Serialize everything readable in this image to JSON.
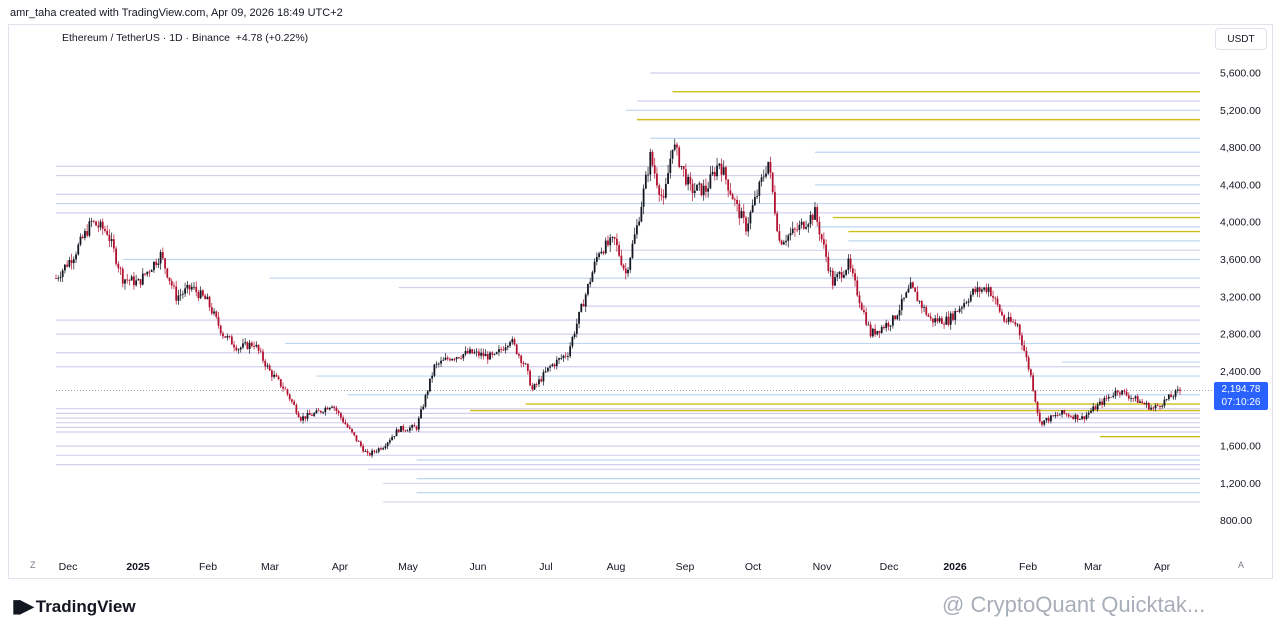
{
  "header": {
    "text": "amr_taha created with TradingView.com, Apr 09, 2026 18:49 UTC+2"
  },
  "symbol": {
    "name": "Ethereum / TetherUS",
    "interval": "1D",
    "exchange": "Binance",
    "change": "+4.78 (+0.22%)"
  },
  "currency": "USDT",
  "last_price": {
    "value": "2,194.78",
    "countdown": "07:10:26"
  },
  "footer": {
    "logo_text": "TradingView",
    "watermark": "@ CryptoQuant Quicktak..."
  },
  "corner_left": "Z",
  "corner_right": "A",
  "colors": {
    "up": "#131722",
    "down": "#b2102f",
    "levels": "#9e97d8",
    "levels_blue": "#6fa8dc",
    "levels_gold": "#c9b800",
    "accent": "#2962ff"
  },
  "chart_data": {
    "type": "candlestick",
    "title": "",
    "ylim": [
      800,
      5600
    ],
    "y_ticks": [
      "5,600.00",
      "5,200.00",
      "4,800.00",
      "4,400.00",
      "4,000.00",
      "3,600.00",
      "3,200.00",
      "2,800.00",
      "2,400.00",
      "1,600.00",
      "1,200.00",
      "800.00"
    ],
    "x_ticks": [
      "Dec",
      "2025",
      "Feb",
      "Mar",
      "Apr",
      "May",
      "Jun",
      "Jul",
      "Aug",
      "Sep",
      "Oct",
      "Nov",
      "Dec",
      "2026",
      "Feb",
      "Mar",
      "Apr"
    ],
    "bold_x_ticks": [
      "2025",
      "2026"
    ],
    "series": [
      {
        "close_path": [
          [
            "2024-11-20",
            3400
          ],
          [
            "2024-11-28",
            3650
          ],
          [
            "2024-12-06",
            4000
          ],
          [
            "2024-12-13",
            3900
          ],
          [
            "2024-12-20",
            3400
          ],
          [
            "2024-12-27",
            3350
          ],
          [
            "2025-01-06",
            3650
          ],
          [
            "2025-01-13",
            3200
          ],
          [
            "2025-01-20",
            3300
          ],
          [
            "2025-01-27",
            3150
          ],
          [
            "2025-02-03",
            2800
          ],
          [
            "2025-02-10",
            2650
          ],
          [
            "2025-02-17",
            2700
          ],
          [
            "2025-02-24",
            2400
          ],
          [
            "2025-03-03",
            2200
          ],
          [
            "2025-03-10",
            1900
          ],
          [
            "2025-03-17",
            1950
          ],
          [
            "2025-03-24",
            2050
          ],
          [
            "2025-03-31",
            1800
          ],
          [
            "2025-04-09",
            1500
          ],
          [
            "2025-04-16",
            1600
          ],
          [
            "2025-04-23",
            1780
          ],
          [
            "2025-05-01",
            1800
          ],
          [
            "2025-05-09",
            2450
          ],
          [
            "2025-05-16",
            2550
          ],
          [
            "2025-05-25",
            2600
          ],
          [
            "2025-06-05",
            2550
          ],
          [
            "2025-06-12",
            2750
          ],
          [
            "2025-06-19",
            2450
          ],
          [
            "2025-06-22",
            2200
          ],
          [
            "2025-06-30",
            2450
          ],
          [
            "2025-07-08",
            2600
          ],
          [
            "2025-07-15",
            3150
          ],
          [
            "2025-07-22",
            3700
          ],
          [
            "2025-07-29",
            3800
          ],
          [
            "2025-08-03",
            3450
          ],
          [
            "2025-08-08",
            3950
          ],
          [
            "2025-08-14",
            4700
          ],
          [
            "2025-08-20",
            4200
          ],
          [
            "2025-08-24",
            4850
          ],
          [
            "2025-09-01",
            4350
          ],
          [
            "2025-09-08",
            4350
          ],
          [
            "2025-09-14",
            4650
          ],
          [
            "2025-09-22",
            4150
          ],
          [
            "2025-09-26",
            3950
          ],
          [
            "2025-10-06",
            4650
          ],
          [
            "2025-10-11",
            3800
          ],
          [
            "2025-10-18",
            3900
          ],
          [
            "2025-10-27",
            4100
          ],
          [
            "2025-11-04",
            3350
          ],
          [
            "2025-11-11",
            3550
          ],
          [
            "2025-11-21",
            2800
          ],
          [
            "2025-12-01",
            2950
          ],
          [
            "2025-12-09",
            3300
          ],
          [
            "2025-12-18",
            2950
          ],
          [
            "2025-12-26",
            2950
          ],
          [
            "2026-01-06",
            3250
          ],
          [
            "2026-01-13",
            3300
          ],
          [
            "2026-01-20",
            2950
          ],
          [
            "2026-01-26",
            2900
          ],
          [
            "2026-02-01",
            2350
          ],
          [
            "2026-02-05",
            1850
          ],
          [
            "2026-02-15",
            1950
          ],
          [
            "2026-02-24",
            1900
          ],
          [
            "2026-03-04",
            2050
          ],
          [
            "2026-03-12",
            2200
          ],
          [
            "2026-03-20",
            2100
          ],
          [
            "2026-03-28",
            2000
          ],
          [
            "2026-04-09",
            2194.78
          ]
        ]
      }
    ],
    "last_price": 2194.78,
    "price_level_lines": [
      {
        "y": 5600,
        "x_start": "2025-08-14"
      },
      {
        "y": 5400,
        "x_start": "2025-08-24",
        "color": "gold"
      },
      {
        "y": 5300,
        "x_start": "2025-08-08"
      },
      {
        "y": 5200,
        "x_start": "2025-08-03",
        "color": "blue"
      },
      {
        "y": 5100,
        "x_start": "2025-08-08",
        "color": "gold"
      },
      {
        "y": 4900,
        "x_start": "2025-08-14",
        "color": "blue"
      },
      {
        "y": 4750,
        "x_start": "2025-10-27",
        "color": "blue"
      },
      {
        "y": 4600,
        "x_start": "2024-11-20"
      },
      {
        "y": 4500,
        "x_start": "2024-11-20"
      },
      {
        "y": 4400,
        "x_start": "2025-10-27",
        "color": "blue"
      },
      {
        "y": 4300,
        "x_start": "2024-11-20"
      },
      {
        "y": 4200,
        "x_start": "2024-11-20",
        "color": "blue"
      },
      {
        "y": 4100,
        "x_start": "2024-11-20"
      },
      {
        "y": 4050,
        "x_start": "2025-11-04",
        "color": "gold"
      },
      {
        "y": 3950,
        "x_start": "2025-10-27",
        "color": "blue"
      },
      {
        "y": 3900,
        "x_start": "2025-11-11",
        "color": "gold"
      },
      {
        "y": 3800,
        "x_start": "2025-11-11",
        "color": "blue"
      },
      {
        "y": 3700,
        "x_start": "2025-07-29"
      },
      {
        "y": 3600,
        "x_start": "2024-12-20",
        "color": "blue"
      },
      {
        "y": 3400,
        "x_start": "2025-02-24",
        "color": "blue"
      },
      {
        "y": 3300,
        "x_start": "2025-04-23"
      },
      {
        "y": 3100,
        "x_start": "2025-07-15"
      },
      {
        "y": 2950,
        "x_start": "2024-11-20"
      },
      {
        "y": 2800,
        "x_start": "2024-11-20"
      },
      {
        "y": 2700,
        "x_start": "2025-03-03",
        "color": "blue"
      },
      {
        "y": 2600,
        "x_start": "2024-11-20"
      },
      {
        "y": 2500,
        "x_start": "2026-02-15",
        "color": "blue"
      },
      {
        "y": 2450,
        "x_start": "2024-11-20"
      },
      {
        "y": 2350,
        "x_start": "2025-03-17",
        "color": "blue"
      },
      {
        "y": 2150,
        "x_start": "2025-03-31",
        "color": "blue"
      },
      {
        "y": 2050,
        "x_start": "2025-06-19",
        "color": "gold"
      },
      {
        "y": 2000,
        "x_start": "2024-11-20"
      },
      {
        "y": 1980,
        "x_start": "2025-05-25",
        "color": "gold"
      },
      {
        "y": 1950,
        "x_start": "2024-11-20"
      },
      {
        "y": 1900,
        "x_start": "2024-11-20"
      },
      {
        "y": 1850,
        "x_start": "2024-11-20"
      },
      {
        "y": 1800,
        "x_start": "2024-11-20"
      },
      {
        "y": 1750,
        "x_start": "2024-11-20"
      },
      {
        "y": 1700,
        "x_start": "2026-03-04",
        "color": "gold"
      },
      {
        "y": 1600,
        "x_start": "2024-11-20"
      },
      {
        "y": 1500,
        "x_start": "2024-11-20"
      },
      {
        "y": 1450,
        "x_start": "2025-05-01",
        "color": "blue"
      },
      {
        "y": 1400,
        "x_start": "2024-11-20"
      },
      {
        "y": 1350,
        "x_start": "2025-04-09"
      },
      {
        "y": 1250,
        "x_start": "2025-05-01",
        "color": "blue"
      },
      {
        "y": 1200,
        "x_start": "2025-04-16"
      },
      {
        "y": 1100,
        "x_start": "2025-05-01",
        "color": "blue"
      },
      {
        "y": 1000,
        "x_start": "2025-04-16"
      }
    ],
    "grid": false
  }
}
